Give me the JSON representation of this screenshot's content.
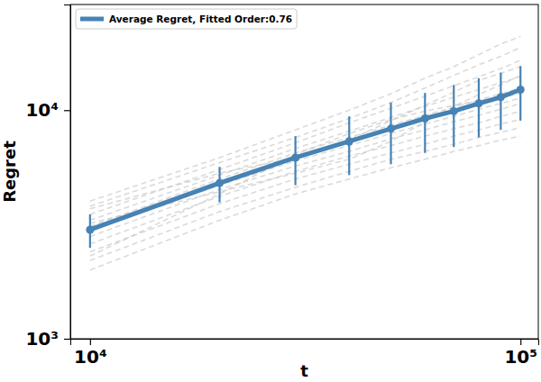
{
  "chart_data": {
    "type": "line",
    "x_label": "t",
    "y_label": "Regret",
    "log": true,
    "legend": "upper left",
    "x": [
      10000,
      20000,
      30000,
      40000,
      50000,
      60000,
      70000,
      80000,
      90000,
      100000
    ],
    "xlim": [
      9000,
      110000
    ],
    "ylim": [
      1000,
      29000
    ],
    "xticks": [
      {
        "value": 10000,
        "label": "10⁴"
      },
      {
        "value": 100000,
        "label": "10⁵"
      }
    ],
    "yticks": [
      {
        "value": 1000,
        "label": "10³"
      },
      {
        "value": 10000,
        "label": "10⁴"
      }
    ],
    "series": [
      {
        "name": "Average Regret, Fitted Order:0.76",
        "color": "#4682b4",
        "marker": "circle",
        "line_style": "solid",
        "values": [
          3000,
          4800,
          6200,
          7300,
          8300,
          9200,
          9900,
          10700,
          11400,
          12300
        ],
        "errors": [
          500,
          850,
          1500,
          2100,
          2500,
          2700,
          3000,
          3100,
          3200,
          3300
        ]
      },
      {
        "color": "#bbbbbb",
        "line_style": "dashed",
        "values": [
          4000,
          6200,
          8200,
          10000,
          11800,
          13800,
          15500,
          17500,
          19500,
          21000
        ]
      },
      {
        "color": "#bbbbbb",
        "line_style": "dashed",
        "values": [
          3800,
          5900,
          7600,
          9200,
          10800,
          12500,
          14200,
          15800,
          17200,
          18800
        ]
      },
      {
        "color": "#bbbbbb",
        "line_style": "dashed",
        "values": [
          3500,
          5500,
          7200,
          8800,
          10200,
          11500,
          12800,
          14000,
          15200,
          16500
        ]
      },
      {
        "color": "#bbbbbb",
        "line_style": "dashed",
        "values": [
          3300,
          5200,
          6800,
          8100,
          9300,
          10400,
          11400,
          12300,
          13200,
          14000
        ]
      },
      {
        "color": "#bbbbbb",
        "line_style": "dashed",
        "values": [
          3100,
          5000,
          6500,
          7600,
          8600,
          9500,
          10300,
          11100,
          11800,
          12500
        ]
      },
      {
        "color": "#bbbbbb",
        "line_style": "dashed",
        "values": [
          3000,
          4700,
          6000,
          7000,
          7900,
          8700,
          9400,
          10100,
          10700,
          11300
        ]
      },
      {
        "color": "#bbbbbb",
        "line_style": "dashed",
        "values": [
          2800,
          4500,
          5700,
          6600,
          7500,
          8200,
          8900,
          9500,
          10100,
          10700
        ]
      },
      {
        "color": "#bbbbbb",
        "line_style": "dashed",
        "values": [
          2600,
          4200,
          5400,
          6300,
          7000,
          7700,
          8300,
          8800,
          9400,
          9900
        ]
      },
      {
        "color": "#bbbbbb",
        "line_style": "dashed",
        "values": [
          2400,
          3900,
          5000,
          5800,
          6500,
          7100,
          7700,
          8200,
          8700,
          9100
        ]
      },
      {
        "color": "#bbbbbb",
        "line_style": "dashed",
        "values": [
          2200,
          3600,
          4600,
          5400,
          6100,
          6600,
          7100,
          7600,
          8000,
          8400
        ]
      },
      {
        "color": "#bbbbbb",
        "line_style": "dashed",
        "values": [
          2000,
          3300,
          4300,
          5000,
          5600,
          6100,
          6600,
          7000,
          7400,
          7700
        ]
      },
      {
        "color": "#bbbbbb",
        "line_style": "dashed",
        "values": [
          3700,
          5300,
          6200,
          7400,
          9000,
          10500,
          12000,
          13500,
          14500,
          15500
        ]
      },
      {
        "color": "#bbbbbb",
        "line_style": "dashed",
        "values": [
          2300,
          4300,
          6400,
          7900,
          9100,
          9900,
          10500,
          11000,
          11400,
          11800
        ]
      },
      {
        "color": "#bbbbbb",
        "line_style": "dashed",
        "values": [
          3200,
          4400,
          5300,
          6100,
          7300,
          8900,
          10400,
          11700,
          12900,
          14200
        ]
      }
    ]
  }
}
